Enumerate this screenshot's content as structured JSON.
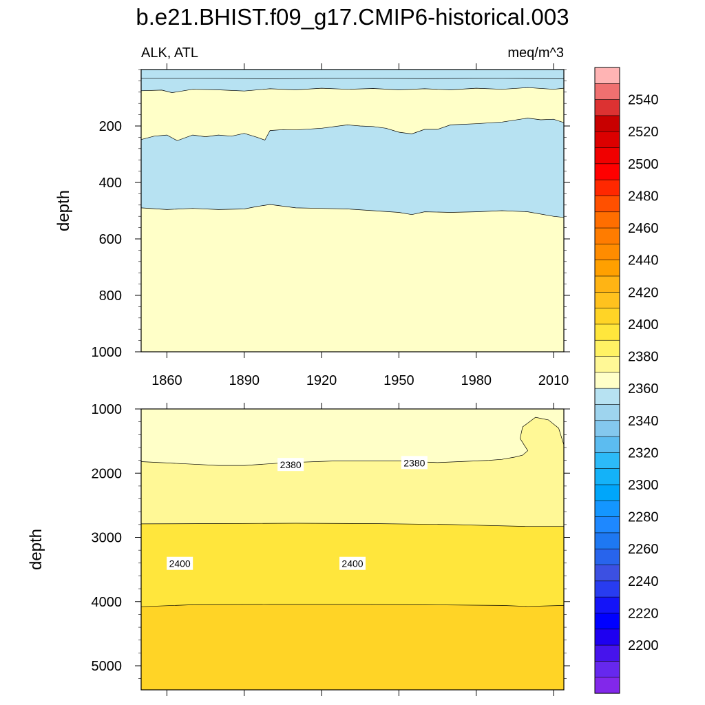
{
  "title": "b.e21.BHIST.f09_g17.CMIP6-historical.003",
  "chart_data": {
    "type": "contour",
    "left_label": "ALK, ATL",
    "right_label": "meq/m^3",
    "xlim": [
      1850,
      2014
    ],
    "x_ticks": [
      1860,
      1890,
      1920,
      1950,
      1980,
      2010
    ],
    "panels": [
      {
        "name": "upper",
        "ylabel": "depth",
        "ylim": [
          0,
          1000
        ],
        "y_ticks": [
          200,
          400,
          600,
          800,
          1000
        ],
        "bands": [
          {
            "fill": "#b7e2f2",
            "top": [
              [
                1850,
                0
              ],
              [
                2014,
                0
              ]
            ]
          },
          {
            "fill": "#b7e2f2",
            "top": [
              [
                1850,
                31
              ],
              [
                1870,
                30
              ],
              [
                1900,
                33
              ],
              [
                1930,
                30
              ],
              [
                1960,
                32
              ],
              [
                1990,
                30
              ],
              [
                2014,
                33
              ]
            ]
          },
          {
            "fill": "#ffffc8",
            "top": [
              [
                1850,
                75
              ],
              [
                1858,
                73
              ],
              [
                1862,
                82
              ],
              [
                1870,
                70
              ],
              [
                1880,
                72
              ],
              [
                1890,
                76
              ],
              [
                1900,
                68
              ],
              [
                1910,
                72
              ],
              [
                1920,
                66
              ],
              [
                1930,
                70
              ],
              [
                1940,
                67
              ],
              [
                1950,
                72
              ],
              [
                1960,
                68
              ],
              [
                1970,
                72
              ],
              [
                1980,
                66
              ],
              [
                1990,
                70
              ],
              [
                2000,
                64
              ],
              [
                2010,
                70
              ],
              [
                2014,
                66
              ]
            ]
          },
          {
            "fill": "#b7e2f2",
            "top": [
              [
                1850,
                248
              ],
              [
                1855,
                236
              ],
              [
                1860,
                232
              ],
              [
                1864,
                252
              ],
              [
                1870,
                232
              ],
              [
                1875,
                238
              ],
              [
                1880,
                232
              ],
              [
                1885,
                236
              ],
              [
                1890,
                226
              ],
              [
                1895,
                240
              ],
              [
                1898,
                250
              ],
              [
                1900,
                216
              ],
              [
                1905,
                213
              ],
              [
                1910,
                214
              ],
              [
                1920,
                208
              ],
              [
                1930,
                196
              ],
              [
                1935,
                200
              ],
              [
                1940,
                202
              ],
              [
                1945,
                208
              ],
              [
                1950,
                222
              ],
              [
                1955,
                228
              ],
              [
                1960,
                212
              ],
              [
                1965,
                212
              ],
              [
                1970,
                196
              ],
              [
                1980,
                192
              ],
              [
                1990,
                186
              ],
              [
                2000,
                172
              ],
              [
                2005,
                178
              ],
              [
                2010,
                176
              ],
              [
                2014,
                188
              ]
            ]
          },
          {
            "fill": "#ffffc8",
            "top": [
              [
                1850,
                490
              ],
              [
                1860,
                496
              ],
              [
                1870,
                492
              ],
              [
                1880,
                496
              ],
              [
                1890,
                494
              ],
              [
                1895,
                485
              ],
              [
                1900,
                478
              ],
              [
                1910,
                490
              ],
              [
                1920,
                492
              ],
              [
                1930,
                494
              ],
              [
                1940,
                500
              ],
              [
                1950,
                506
              ],
              [
                1955,
                514
              ],
              [
                1960,
                504
              ],
              [
                1970,
                506
              ],
              [
                1980,
                504
              ],
              [
                1990,
                500
              ],
              [
                2000,
                504
              ],
              [
                2010,
                520
              ],
              [
                2014,
                524
              ]
            ]
          }
        ],
        "contour_labels": []
      },
      {
        "name": "lower",
        "ylabel": "depth",
        "ylim": [
          1000,
          5375
        ],
        "y_ticks": [
          1000,
          2000,
          3000,
          4000,
          5000
        ],
        "bands": [
          {
            "fill": "#ffffc8",
            "top": [
              [
                1850,
                1000
              ],
              [
                2014,
                1000
              ]
            ]
          },
          {
            "fill": "#fff896",
            "top": [
              [
                1850,
                1820
              ],
              [
                1870,
                1860
              ],
              [
                1880,
                1880
              ],
              [
                1890,
                1880
              ],
              [
                1905,
                1840
              ],
              [
                1925,
                1810
              ],
              [
                1950,
                1810
              ],
              [
                1965,
                1835
              ],
              [
                1985,
                1800
              ],
              [
                1990,
                1785
              ],
              [
                1995,
                1750
              ],
              [
                1998,
                1720
              ],
              [
                2000,
                1650
              ],
              [
                1997,
                1460
              ],
              [
                1998,
                1280
              ],
              [
                2003,
                1130
              ],
              [
                2008,
                1170
              ],
              [
                2012,
                1300
              ],
              [
                2014,
                1560
              ]
            ]
          },
          {
            "fill": "#ffe63c",
            "top": [
              [
                1850,
                2790
              ],
              [
                1880,
                2785
              ],
              [
                1910,
                2780
              ],
              [
                1940,
                2785
              ],
              [
                1970,
                2800
              ],
              [
                2000,
                2830
              ],
              [
                2014,
                2830
              ]
            ]
          },
          {
            "fill": "#ffd426",
            "top": [
              [
                1850,
                4080
              ],
              [
                1870,
                4050
              ],
              [
                1900,
                4045
              ],
              [
                1930,
                4045
              ],
              [
                1960,
                4050
              ],
              [
                1990,
                4060
              ],
              [
                2000,
                4075
              ],
              [
                2014,
                4060
              ]
            ]
          }
        ],
        "contour_labels": [
          {
            "text": "2380",
            "x": 1908,
            "y": 1870
          },
          {
            "text": "2380",
            "x": 1956,
            "y": 1840
          },
          {
            "text": "2400",
            "x": 1865,
            "y": 3410
          },
          {
            "text": "2400",
            "x": 1932,
            "y": 3410
          }
        ]
      }
    ],
    "colorbar": {
      "colors": [
        "#ffb4b4",
        "#f07070",
        "#dc3232",
        "#c80000",
        "#dc0000",
        "#f00000",
        "#ff0000",
        "#ff2800",
        "#ff5000",
        "#ff6e00",
        "#ff7c00",
        "#ff8c00",
        "#ffa000",
        "#ffb414",
        "#ffc21e",
        "#ffd426",
        "#ffe63c",
        "#fff264",
        "#fff896",
        "#ffffc8",
        "#b7e2f2",
        "#9ed4ee",
        "#84c8ee",
        "#5cbcf0",
        "#2cbaf8",
        "#14b2f8",
        "#00a6fa",
        "#1496ff",
        "#1e88ff",
        "#1e78f2",
        "#2864ec",
        "#3c50e2",
        "#283cf0",
        "#1414f8",
        "#0000ff",
        "#1e00f0",
        "#4614ec",
        "#6628ee",
        "#8228ea"
      ],
      "labels": [
        "2540",
        "2520",
        "2500",
        "2480",
        "2460",
        "2440",
        "2420",
        "2400",
        "2380",
        "2360",
        "2340",
        "2320",
        "2300",
        "2280",
        "2260",
        "2240",
        "2220",
        "2200"
      ]
    }
  }
}
